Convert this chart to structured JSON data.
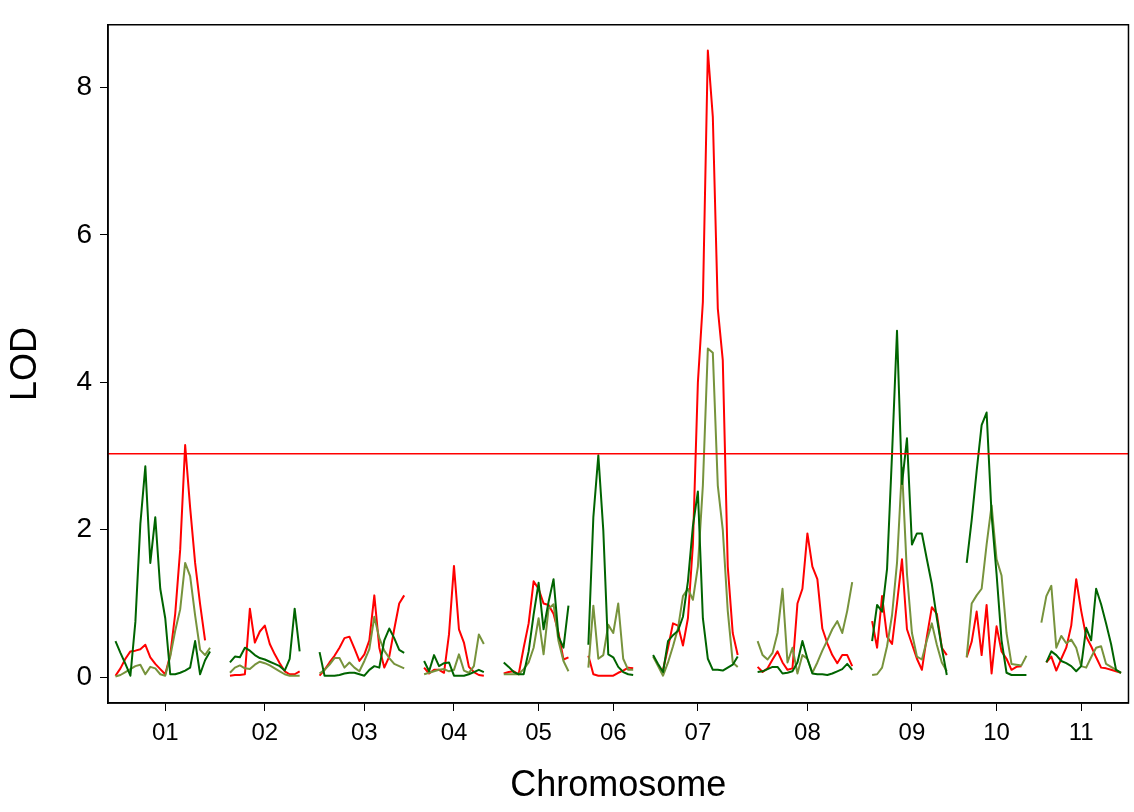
{
  "chart_data": {
    "type": "line",
    "xlabel": "Chromosome",
    "ylabel": "LOD",
    "ylim": [
      -0.35,
      8.85
    ],
    "yticks": [
      0,
      2,
      4,
      6,
      8
    ],
    "grid": false,
    "legend": false,
    "marker": "none",
    "line_style": "solid",
    "categories": [
      null,
      null,
      null,
      null,
      null,
      null,
      null,
      null,
      null,
      null,
      null,
      "01",
      null,
      null,
      null,
      null,
      null,
      null,
      null,
      null,
      null,
      null,
      null,
      null,
      null,
      null,
      null,
      null,
      null,
      null,
      null,
      "02",
      null,
      null,
      null,
      null,
      null,
      null,
      null,
      null,
      null,
      null,
      null,
      null,
      null,
      null,
      null,
      null,
      null,
      null,
      null,
      "03",
      null,
      null,
      null,
      null,
      null,
      null,
      null,
      null,
      null,
      null,
      null,
      null,
      null,
      null,
      null,
      null,
      null,
      "04",
      null,
      null,
      null,
      null,
      null,
      null,
      null,
      null,
      null,
      null,
      null,
      null,
      null,
      null,
      null,
      null,
      "05",
      null,
      null,
      null,
      null,
      null,
      null,
      null,
      null,
      null,
      null,
      null,
      null,
      null,
      null,
      "06",
      null,
      null,
      null,
      null,
      null,
      null,
      null,
      null,
      null,
      null,
      null,
      null,
      null,
      null,
      null,
      null,
      "07",
      null,
      null,
      null,
      null,
      null,
      null,
      null,
      null,
      null,
      null,
      null,
      null,
      null,
      null,
      null,
      null,
      null,
      null,
      null,
      null,
      null,
      "08",
      null,
      null,
      null,
      null,
      null,
      null,
      null,
      null,
      null,
      null,
      null,
      null,
      null,
      null,
      null,
      null,
      null,
      null,
      null,
      null,
      "09",
      null,
      null,
      null,
      null,
      null,
      null,
      null,
      null,
      null,
      null,
      null,
      null,
      null,
      null,
      null,
      null,
      "10",
      null,
      null,
      null,
      null,
      null,
      null,
      null,
      null,
      null,
      null,
      null,
      null,
      null,
      null,
      null,
      null,
      "11",
      null,
      null,
      null,
      null,
      null,
      null,
      null,
      null,
      null
    ],
    "ref_lines": [
      {
        "axis": "y",
        "value": 3.03,
        "color": "#ff0000"
      }
    ],
    "series": [
      {
        "color": "#006400",
        "values": [
          null,
          0.49,
          0.33,
          0.18,
          0.02,
          0.75,
          2.08,
          2.86,
          1.55,
          2.17,
          1.2,
          0.8,
          0.04,
          0.04,
          0.06,
          0.09,
          0.13,
          0.49,
          0.04,
          0.23,
          0.35,
          null,
          null,
          null,
          0.2,
          0.28,
          0.27,
          0.4,
          0.36,
          0.3,
          0.26,
          0.24,
          0.21,
          0.18,
          0.15,
          0.09,
          0.25,
          0.93,
          0.35,
          null,
          null,
          null,
          0.34,
          0.02,
          0.02,
          0.02,
          0.03,
          0.05,
          0.06,
          0.06,
          0.04,
          0.02,
          0.1,
          0.15,
          0.13,
          0.5,
          0.66,
          0.53,
          0.37,
          0.33,
          null,
          null,
          null,
          0.22,
          0.08,
          0.3,
          0.15,
          0.19,
          0.2,
          0.02,
          0.02,
          0.02,
          0.04,
          0.07,
          0.1,
          0.07,
          null,
          null,
          null,
          0.2,
          0.14,
          0.07,
          0.04,
          0.04,
          0.35,
          0.85,
          1.28,
          0.65,
          1.02,
          1.33,
          0.55,
          0.4,
          0.97,
          null,
          null,
          null,
          0.44,
          2.17,
          3.01,
          1.99,
          0.31,
          0.27,
          0.14,
          0.07,
          0.04,
          0.03,
          null,
          null,
          null,
          0.3,
          0.18,
          0.07,
          0.49,
          0.57,
          0.63,
          0.82,
          1.3,
          2.05,
          2.52,
          0.8,
          0.25,
          0.1,
          0.1,
          0.09,
          0.13,
          0.17,
          0.28,
          null,
          null,
          null,
          0.07,
          0.08,
          0.11,
          0.14,
          0.14,
          0.05,
          0.06,
          0.08,
          0.2,
          0.49,
          0.25,
          0.05,
          0.04,
          0.04,
          0.03,
          0.05,
          0.08,
          0.11,
          0.18,
          0.1,
          null,
          null,
          null,
          0.49,
          0.98,
          0.89,
          1.47,
          3.02,
          4.7,
          2.62,
          3.24,
          1.8,
          1.95,
          1.95,
          1.6,
          1.26,
          0.8,
          0.4,
          0.03,
          null,
          null,
          null,
          1.55,
          2.13,
          2.8,
          3.42,
          3.59,
          2.2,
          1.4,
          0.5,
          0.06,
          0.03,
          0.03,
          0.03,
          0.03,
          null,
          null,
          null,
          0.2,
          0.35,
          0.3,
          0.22,
          0.19,
          0.15,
          0.08,
          0.15,
          0.67,
          0.5,
          1.2,
          0.99,
          0.73,
          0.45,
          0.1,
          0.06,
          null
        ]
      },
      {
        "color": "#77933c",
        "values": [
          null,
          0.01,
          0.03,
          0.07,
          0.11,
          0.15,
          0.17,
          0.04,
          0.14,
          0.12,
          0.04,
          0.02,
          0.28,
          0.63,
          0.92,
          1.55,
          1.37,
          0.84,
          0.37,
          0.3,
          0.4,
          null,
          null,
          null,
          0.06,
          0.13,
          0.16,
          0.12,
          0.11,
          0.17,
          0.21,
          0.19,
          0.16,
          0.12,
          0.08,
          0.04,
          0.02,
          0.02,
          0.02,
          null,
          null,
          null,
          0.05,
          0.1,
          0.17,
          0.26,
          0.26,
          0.13,
          0.2,
          0.13,
          0.08,
          0.22,
          0.38,
          0.82,
          0.53,
          0.36,
          0.26,
          0.18,
          0.15,
          0.12,
          null,
          null,
          null,
          0.04,
          0.06,
          0.08,
          0.1,
          0.11,
          0.08,
          0.1,
          0.31,
          0.09,
          0.06,
          0.15,
          0.58,
          0.45,
          null,
          null,
          null,
          0.04,
          0.04,
          0.04,
          0.04,
          0.11,
          0.2,
          0.4,
          0.8,
          0.31,
          0.93,
          0.99,
          0.49,
          0.22,
          0.08,
          null,
          null,
          null,
          0.13,
          0.97,
          0.25,
          0.3,
          0.71,
          0.6,
          1.0,
          0.25,
          0.1,
          0.1,
          null,
          null,
          null,
          0.28,
          0.15,
          0.02,
          0.2,
          0.42,
          0.66,
          1.1,
          1.2,
          1.05,
          1.5,
          2.6,
          4.46,
          4.4,
          2.6,
          2.0,
          0.9,
          0.2,
          0.14,
          null,
          null,
          null,
          0.49,
          0.3,
          0.24,
          0.33,
          0.6,
          1.2,
          0.2,
          0.4,
          0.05,
          0.3,
          0.25,
          0.06,
          0.2,
          0.36,
          0.5,
          0.65,
          0.76,
          0.6,
          0.9,
          1.29,
          null,
          null,
          null,
          0.03,
          0.04,
          0.13,
          0.42,
          0.84,
          1.55,
          2.84,
          1.4,
          0.6,
          0.28,
          0.24,
          0.5,
          0.73,
          0.44,
          0.2,
          0.08,
          null,
          null,
          null,
          0.27,
          1.0,
          1.11,
          1.2,
          1.8,
          2.33,
          1.6,
          1.38,
          0.6,
          0.18,
          0.17,
          0.16,
          0.29,
          null,
          null,
          0.74,
          1.1,
          1.24,
          0.4,
          0.56,
          0.46,
          0.51,
          0.4,
          0.15,
          0.13,
          0.27,
          0.4,
          0.42,
          0.18,
          0.14,
          0.1,
          0.06,
          null
        ]
      },
      {
        "color": "#ff0000",
        "values": [
          null,
          0.02,
          0.12,
          0.25,
          0.35,
          0.36,
          0.38,
          0.44,
          0.27,
          0.18,
          0.11,
          0.04,
          0.3,
          0.86,
          1.73,
          3.15,
          2.3,
          1.55,
          0.99,
          0.5,
          null,
          null,
          null,
          null,
          0.02,
          0.03,
          0.03,
          0.04,
          0.93,
          0.47,
          0.62,
          0.7,
          0.45,
          0.31,
          0.19,
          0.08,
          0.04,
          0.04,
          0.08,
          null,
          null,
          null,
          0.02,
          0.1,
          0.2,
          0.29,
          0.4,
          0.53,
          0.55,
          0.39,
          0.22,
          0.31,
          0.5,
          1.11,
          0.4,
          0.13,
          0.28,
          0.65,
          1.0,
          1.11,
          null,
          null,
          null,
          0.13,
          0.05,
          0.1,
          0.1,
          0.06,
          0.58,
          1.51,
          0.65,
          0.47,
          0.14,
          0.07,
          0.03,
          0.02,
          null,
          null,
          null,
          0.05,
          0.07,
          0.08,
          0.04,
          0.4,
          0.73,
          1.3,
          1.2,
          1.0,
          0.98,
          0.86,
          0.6,
          0.24,
          0.27,
          null,
          null,
          null,
          0.29,
          0.04,
          0.02,
          0.02,
          0.02,
          0.02,
          0.06,
          0.09,
          0.13,
          0.12,
          null,
          null,
          null,
          null,
          null,
          0.1,
          0.4,
          0.73,
          0.7,
          0.43,
          0.8,
          1.8,
          4.0,
          5.09,
          8.5,
          7.6,
          5.0,
          4.3,
          1.5,
          0.6,
          0.3,
          null,
          null,
          null,
          0.14,
          0.07,
          0.12,
          0.24,
          0.35,
          0.2,
          0.1,
          0.12,
          1.0,
          1.2,
          1.95,
          1.5,
          1.33,
          0.66,
          0.46,
          0.3,
          0.19,
          0.3,
          0.3,
          0.15,
          null,
          null,
          null,
          0.76,
          0.4,
          1.1,
          0.55,
          0.45,
          1.0,
          1.6,
          0.65,
          0.45,
          0.25,
          0.1,
          0.55,
          0.95,
          0.86,
          0.4,
          0.3,
          null,
          null,
          null,
          0.27,
          0.48,
          0.89,
          0.3,
          0.98,
          0.05,
          0.69,
          0.35,
          0.25,
          0.1,
          0.14,
          0.15,
          null,
          null,
          null,
          null,
          0.2,
          0.28,
          0.09,
          0.25,
          0.4,
          0.7,
          1.33,
          0.9,
          0.55,
          0.42,
          0.27,
          0.13,
          0.12,
          0.1,
          0.08,
          0.06,
          null
        ]
      }
    ]
  }
}
